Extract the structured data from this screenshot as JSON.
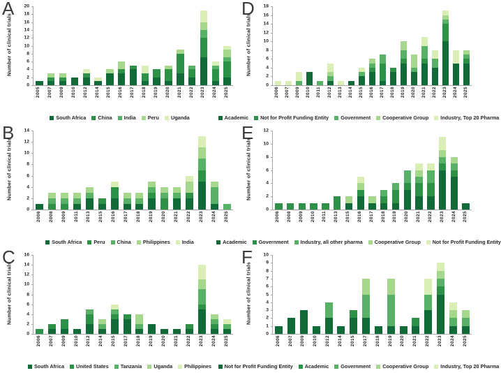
{
  "palette": {
    "shade1_darkest": "#116b39",
    "shade2_dark": "#2e9148",
    "shade3_medium": "#58b166",
    "shade4_light": "#a5d78d",
    "shade5_palest": "#d9efb5",
    "axis_line": "#a6a6a6",
    "text": "#262626"
  },
  "chart_data": [
    {
      "id": "A",
      "type": "bar",
      "stacked": true,
      "ylabel": "Number of clinical trials",
      "ylim": [
        0,
        20
      ],
      "ytick_step": 2,
      "legend_position": "bottom",
      "grid": false,
      "categories": [
        "2005",
        "2007",
        "2009",
        "2010",
        "2012",
        "2014",
        "2015",
        "2016",
        "2017",
        "2018",
        "2019",
        "2020",
        "2021",
        "2022",
        "2023",
        "2024",
        "2025"
      ],
      "series": [
        {
          "name": "South Africa",
          "color": "#116b39",
          "values": [
            1,
            1,
            1,
            2,
            2,
            1,
            3,
            3,
            4,
            1,
            2,
            1,
            3,
            2,
            7,
            1,
            2
          ]
        },
        {
          "name": "China",
          "color": "#2e9148",
          "values": [
            0,
            1,
            1,
            0,
            1,
            0,
            0,
            1,
            1,
            2,
            2,
            3,
            5,
            2,
            5,
            3,
            4
          ]
        },
        {
          "name": "India",
          "color": "#58b166",
          "values": [
            0,
            0,
            0,
            0,
            0,
            0,
            0,
            0,
            0,
            0,
            0,
            0,
            0,
            1,
            2,
            1,
            1
          ]
        },
        {
          "name": "Peru",
          "color": "#a5d78d",
          "values": [
            0,
            1,
            1,
            0,
            0,
            0,
            1,
            2,
            0,
            0,
            0,
            1,
            1,
            0,
            2,
            0,
            2
          ]
        },
        {
          "name": "Uganda",
          "color": "#d9efb5",
          "values": [
            0,
            0,
            0,
            0,
            1,
            1,
            0,
            0,
            0,
            2,
            0,
            0,
            0,
            0,
            3,
            1,
            1
          ]
        }
      ]
    },
    {
      "id": "D",
      "type": "bar",
      "stacked": true,
      "ylabel": "Number of clinical trials",
      "ylim": [
        0,
        18
      ],
      "ytick_step": 2,
      "legend_position": "bottom",
      "grid": false,
      "categories": [
        "2006",
        "2007",
        "2009",
        "2010",
        "2011",
        "2012",
        "2013",
        "2014",
        "2015",
        "2016",
        "2017",
        "2018",
        "2019",
        "2020",
        "2021",
        "2022",
        "2023",
        "2024",
        "2025"
      ],
      "series": [
        {
          "name": "Academic",
          "color": "#116b39",
          "values": [
            0,
            0,
            0,
            3,
            0,
            1,
            0,
            1,
            2,
            3,
            1,
            3,
            5,
            3,
            5,
            4,
            10,
            5,
            5
          ]
        },
        {
          "name": "Not for Profit Funding Entity",
          "color": "#2e9148",
          "values": [
            0,
            0,
            0,
            0,
            0,
            0,
            0,
            0,
            0,
            1,
            4,
            1,
            1,
            0,
            1,
            0,
            4,
            0,
            1
          ]
        },
        {
          "name": "Government",
          "color": "#58b166",
          "values": [
            0,
            0,
            1,
            0,
            1,
            1,
            0,
            0,
            1,
            1,
            2,
            0,
            2,
            1,
            3,
            2,
            1,
            0,
            1
          ]
        },
        {
          "name": "Cooperative Group",
          "color": "#a5d78d",
          "values": [
            0,
            0,
            0,
            0,
            0,
            1,
            0,
            0,
            0,
            1,
            0,
            0,
            2,
            3,
            0,
            0,
            1,
            0,
            1
          ]
        },
        {
          "name": "Industry, Top 20 Pharma",
          "color": "#d9efb5",
          "values": [
            1,
            1,
            2,
            0,
            0,
            2,
            1,
            0,
            1,
            0,
            0,
            0,
            0,
            0,
            2,
            2,
            1,
            3,
            0
          ]
        }
      ]
    },
    {
      "id": "B",
      "type": "bar",
      "stacked": true,
      "ylabel": "Number of clinical trials",
      "ylim": [
        0,
        14
      ],
      "ytick_step": 2,
      "legend_position": "bottom",
      "grid": false,
      "categories": [
        "2006",
        "2008",
        "2009",
        "2011",
        "2013",
        "2015",
        "2016",
        "2017",
        "2018",
        "2019",
        "2020",
        "2021",
        "2022",
        "2023",
        "2024",
        "2025"
      ],
      "series": [
        {
          "name": "South Africa",
          "color": "#116b39",
          "values": [
            1,
            0,
            0,
            1,
            2,
            1,
            2,
            1,
            1,
            2,
            0,
            2,
            2,
            5,
            1,
            0
          ]
        },
        {
          "name": "Peru",
          "color": "#2e9148",
          "values": [
            0,
            1,
            1,
            0,
            0,
            1,
            2,
            0,
            0,
            1,
            2,
            0,
            1,
            2,
            0,
            0
          ]
        },
        {
          "name": "China",
          "color": "#58b166",
          "values": [
            0,
            1,
            1,
            1,
            1,
            0,
            0,
            1,
            1,
            1,
            1,
            1,
            0,
            2,
            3,
            1
          ]
        },
        {
          "name": "Philippines",
          "color": "#a5d78d",
          "values": [
            0,
            1,
            1,
            1,
            1,
            0,
            0,
            1,
            1,
            1,
            1,
            1,
            2,
            2,
            1,
            0
          ]
        },
        {
          "name": "India",
          "color": "#d9efb5",
          "values": [
            0,
            0,
            0,
            0,
            0,
            0,
            1,
            0,
            0,
            0,
            0,
            0,
            1,
            2,
            0,
            0
          ]
        }
      ]
    },
    {
      "id": "E",
      "type": "bar",
      "stacked": true,
      "ylabel": "Number of clinical trials",
      "ylim": [
        0,
        12
      ],
      "ytick_step": 2,
      "legend_position": "bottom",
      "grid": false,
      "categories": [
        "2006",
        "2008",
        "2009",
        "2010",
        "2011",
        "2013",
        "2015",
        "2016",
        "2017",
        "2018",
        "2019",
        "2020",
        "2021",
        "2022",
        "2023",
        "2024",
        "2025"
      ],
      "series": [
        {
          "name": "Academic",
          "color": "#116b39",
          "values": [
            0,
            0,
            0,
            0,
            0,
            0,
            1,
            2,
            1,
            1,
            1,
            3,
            2,
            2,
            6,
            5,
            1
          ]
        },
        {
          "name": "Government",
          "color": "#2e9148",
          "values": [
            1,
            1,
            1,
            1,
            1,
            2,
            0,
            1,
            0,
            1,
            2,
            1,
            2,
            2,
            1,
            1,
            0
          ]
        },
        {
          "name": "Industry, all other pharma",
          "color": "#58b166",
          "values": [
            0,
            0,
            0,
            0,
            0,
            0,
            0,
            0,
            0,
            1,
            1,
            2,
            1,
            2,
            1,
            1,
            0
          ]
        },
        {
          "name": "Cooperative Group",
          "color": "#a5d78d",
          "values": [
            0,
            0,
            0,
            0,
            0,
            0,
            1,
            1,
            1,
            0,
            0,
            0,
            1,
            0,
            1,
            1,
            0
          ]
        },
        {
          "name": "Not for Profit Funding Entity",
          "color": "#d9efb5",
          "values": [
            0,
            0,
            0,
            0,
            0,
            0,
            0,
            1,
            0,
            0,
            0,
            0,
            1,
            1,
            2,
            0,
            0
          ]
        }
      ]
    },
    {
      "id": "C",
      "type": "bar",
      "stacked": true,
      "ylabel": "Number of clinical trials",
      "ylim": [
        0,
        16
      ],
      "ytick_step": 2,
      "legend_position": "bottom",
      "grid": false,
      "categories": [
        "2006",
        "2007",
        "2009",
        "2010",
        "2012",
        "2014",
        "2015",
        "2017",
        "2018",
        "2019",
        "2020",
        "2021",
        "2022",
        "2023",
        "2024",
        "2025"
      ],
      "series": [
        {
          "name": "South Africa",
          "color": "#116b39",
          "values": [
            0,
            1,
            1,
            1,
            2,
            1,
            3,
            3,
            1,
            2,
            1,
            1,
            1,
            5,
            1,
            1
          ]
        },
        {
          "name": "United States",
          "color": "#2e9148",
          "values": [
            1,
            1,
            2,
            0,
            2,
            0,
            1,
            1,
            0,
            0,
            0,
            0,
            1,
            1,
            1,
            0
          ]
        },
        {
          "name": "Tanzania",
          "color": "#58b166",
          "values": [
            0,
            0,
            0,
            0,
            1,
            1,
            1,
            0,
            1,
            0,
            0,
            0,
            0,
            3,
            1,
            1
          ]
        },
        {
          "name": "Uganda",
          "color": "#a5d78d",
          "values": [
            0,
            0,
            0,
            0,
            0,
            1,
            0,
            0,
            2,
            0,
            0,
            0,
            0,
            2,
            1,
            0
          ]
        },
        {
          "name": "Philippines",
          "color": "#d9efb5",
          "values": [
            0,
            0,
            0,
            0,
            0,
            0,
            1,
            0,
            0,
            0,
            0,
            0,
            0,
            3,
            0,
            1
          ]
        }
      ]
    },
    {
      "id": "F",
      "type": "bar",
      "stacked": true,
      "ylabel": "Number of clinical trials",
      "ylim": [
        0,
        10
      ],
      "ytick_step": 1,
      "legend_position": "bottom",
      "grid": false,
      "categories": [
        "2006",
        "2007",
        "2009",
        "2010",
        "2012",
        "2014",
        "2015",
        "2017",
        "2018",
        "2019",
        "2020",
        "2021",
        "2022",
        "2023",
        "2024",
        "2025"
      ],
      "series": [
        {
          "name": "Not for Profit Funding Entity",
          "color": "#116b39",
          "values": [
            1,
            2,
            3,
            1,
            2,
            1,
            2,
            2,
            1,
            1,
            1,
            1,
            3,
            5,
            1,
            1
          ]
        },
        {
          "name": "Academic",
          "color": "#2e9148",
          "values": [
            0,
            0,
            0,
            0,
            0,
            0,
            1,
            0,
            0,
            0,
            0,
            1,
            0,
            1,
            0,
            0
          ]
        },
        {
          "name": "Government",
          "color": "#58b166",
          "values": [
            0,
            0,
            0,
            0,
            2,
            0,
            0,
            3,
            0,
            4,
            0,
            0,
            2,
            1,
            1,
            1
          ]
        },
        {
          "name": "Cooperative Group",
          "color": "#a5d78d",
          "values": [
            0,
            0,
            0,
            0,
            0,
            0,
            0,
            2,
            0,
            2,
            0,
            0,
            0,
            1,
            1,
            1
          ]
        },
        {
          "name": "Industry, Top 20 Pharma",
          "color": "#d9efb5",
          "values": [
            0,
            0,
            0,
            0,
            0,
            0,
            0,
            0,
            0,
            0,
            0,
            0,
            2,
            1,
            1,
            0
          ]
        }
      ]
    }
  ]
}
